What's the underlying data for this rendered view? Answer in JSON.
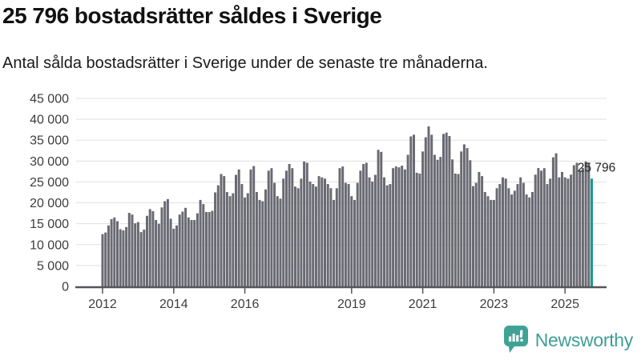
{
  "header": {
    "title": "25 796 bostadsrätter såldes i Sverige",
    "subtitle": "Antal sålda bostadsrätter i Sverige under de senaste tre månaderna."
  },
  "footer": {
    "brand": "Newsworthy",
    "logo_icon": "speech-bubble-bar-chart-icon"
  },
  "colors": {
    "bar": "#6a6a73",
    "highlight": "#179a8f",
    "grid": "#e1e1e1",
    "axis": "#55555b",
    "title_text": "#111111",
    "tick_text": "#3d3d3d",
    "annotation_text": "#222222",
    "brand_teal": "#3fa296"
  },
  "chart_data": {
    "type": "bar",
    "title": "25 796 bostadsrätter såldes i Sverige",
    "subtitle": "Antal sålda bostadsrätter i Sverige under de senaste tre månaderna.",
    "unit": "sålda bostadsrätter (rullande 3 månader)",
    "x_start_month": "2012-01",
    "x_end_month": "2025-10",
    "xlabel": "",
    "ylabel": "",
    "ylim": [
      0,
      45000
    ],
    "grid": true,
    "legend": false,
    "highlight_last": true,
    "annotation_label": "25 796",
    "annotation_value": 25796,
    "y_ticks": [
      0,
      5000,
      10000,
      15000,
      20000,
      25000,
      30000,
      35000,
      40000,
      45000
    ],
    "y_tick_labels": [
      "0",
      "5 000",
      "10 000",
      "15 000",
      "20 000",
      "25 000",
      "30 000",
      "35 000",
      "40 000",
      "45 000"
    ],
    "x_tick_years": [
      2012,
      2014,
      2016,
      2019,
      2021,
      2023,
      2025
    ],
    "values": [
      12500,
      12900,
      14600,
      16100,
      16500,
      15600,
      13700,
      13400,
      14200,
      17600,
      17200,
      15100,
      15400,
      13000,
      13600,
      16900,
      18500,
      18000,
      15900,
      15000,
      18900,
      20400,
      20900,
      16200,
      13800,
      14600,
      17200,
      17900,
      18800,
      16500,
      15900,
      15900,
      17500,
      20700,
      19700,
      17800,
      17800,
      18100,
      22500,
      24200,
      26900,
      26400,
      22600,
      21600,
      22300,
      26700,
      28000,
      24500,
      21300,
      22300,
      28000,
      28800,
      22600,
      20700,
      20400,
      23200,
      27700,
      28300,
      24800,
      21600,
      21000,
      25800,
      27700,
      29300,
      28300,
      23900,
      23500,
      25800,
      29900,
      29600,
      25100,
      24500,
      23900,
      26400,
      26100,
      25800,
      24500,
      23500,
      20700,
      23500,
      28300,
      28700,
      24800,
      24500,
      21600,
      20700,
      24800,
      27700,
      29300,
      29600,
      26100,
      25100,
      26700,
      32700,
      32200,
      26100,
      24200,
      24500,
      28300,
      28700,
      28500,
      28900,
      28000,
      31500,
      35900,
      36300,
      27200,
      27000,
      32300,
      35700,
      38300,
      36300,
      31500,
      30300,
      31000,
      36500,
      36800,
      36000,
      30400,
      27000,
      26900,
      32300,
      34000,
      33100,
      30200,
      24000,
      24800,
      27400,
      26400,
      22600,
      21600,
      20700,
      20700,
      23500,
      24500,
      26100,
      25800,
      23500,
      22000,
      22900,
      24500,
      26100,
      24800,
      22000,
      21300,
      22600,
      26750,
      28350,
      27700,
      28300,
      24500,
      25800,
      30900,
      31850,
      26100,
      27400,
      26100,
      25800,
      26750,
      29000,
      29600,
      27700,
      28350,
      29900,
      29600,
      25796
    ]
  }
}
